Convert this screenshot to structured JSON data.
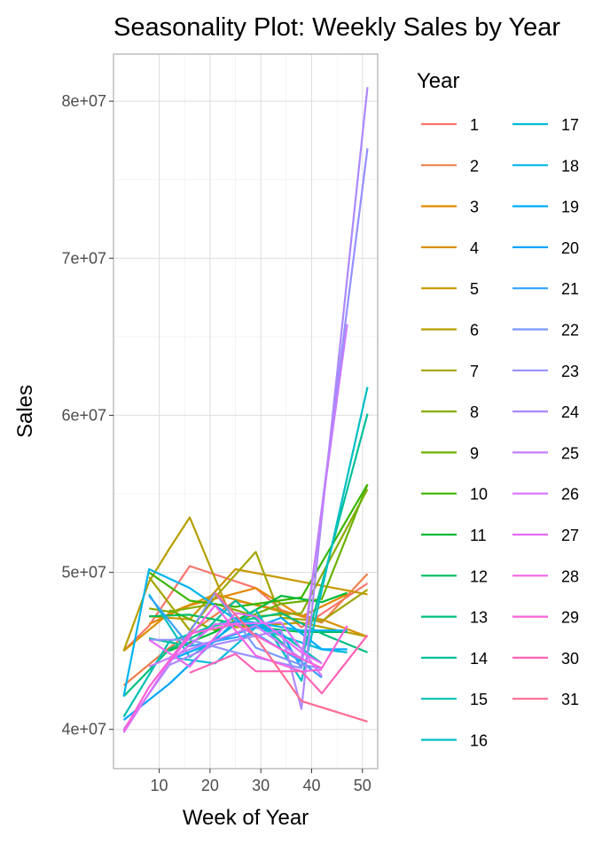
{
  "chart_data": {
    "type": "line",
    "title": "Seasonality Plot: Weekly Sales by Year",
    "xlabel": "Week of Year",
    "ylabel": "Sales",
    "xlim": [
      1,
      53
    ],
    "ylim": [
      37500000,
      83000000
    ],
    "x_ticks": [
      10,
      20,
      30,
      40,
      50
    ],
    "x_tick_labels": [
      "10",
      "20",
      "30",
      "40",
      "50"
    ],
    "y_ticks": [
      40000000,
      50000000,
      60000000,
      70000000,
      80000000
    ],
    "y_tick_labels": [
      "4e+07",
      "5e+07",
      "6e+07",
      "7e+07",
      "8e+07"
    ],
    "grid": true,
    "legend_title": "Year",
    "legend_placement": "right",
    "series": [
      {
        "name": "1",
        "color": "#F8766D",
        "x": [
          3,
          8,
          16,
          29,
          38,
          51
        ],
        "y": [
          45000000,
          46600000,
          50400000,
          49000000,
          46500000,
          49300000
        ]
      },
      {
        "name": "2",
        "color": "#F07E4B",
        "x": [
          3,
          12,
          25,
          34,
          42,
          51
        ],
        "y": [
          42800000,
          45200000,
          48200000,
          47600000,
          46800000,
          49900000
        ]
      },
      {
        "name": "3",
        "color": "#E58700",
        "x": [
          8,
          16,
          29,
          38,
          47
        ],
        "y": [
          46700000,
          47900000,
          49000000,
          47200000,
          48600000
        ]
      },
      {
        "name": "4",
        "color": "#D89000",
        "x": [
          3,
          12,
          21,
          34,
          42,
          51
        ],
        "y": [
          45000000,
          47400000,
          48600000,
          47500000,
          47000000,
          45900000
        ]
      },
      {
        "name": "5",
        "color": "#C99800",
        "x": [
          8,
          16,
          25,
          38,
          51
        ],
        "y": [
          47200000,
          47000000,
          50200000,
          49400000,
          48600000
        ]
      },
      {
        "name": "6",
        "color": "#B79F00",
        "x": [
          3,
          8,
          12,
          16,
          25,
          38,
          51
        ],
        "y": [
          45000000,
          49400000,
          51500000,
          53500000,
          46500000,
          46800000,
          45900000
        ]
      },
      {
        "name": "7",
        "color": "#A3A500",
        "x": [
          8,
          16,
          21,
          29,
          34,
          42,
          51
        ],
        "y": [
          49700000,
          46300000,
          48400000,
          51300000,
          47100000,
          46900000,
          48900000
        ]
      },
      {
        "name": "8",
        "color": "#8BAB00",
        "x": [
          8,
          12,
          21,
          29,
          38,
          51
        ],
        "y": [
          47700000,
          47500000,
          48000000,
          47200000,
          47400000,
          55300000
        ]
      },
      {
        "name": "9",
        "color": "#6BB100",
        "x": [
          12,
          21,
          34,
          42,
          51
        ],
        "y": [
          47600000,
          46300000,
          48000000,
          48300000,
          55600000
        ]
      },
      {
        "name": "10",
        "color": "#39B600",
        "x": [
          8,
          16,
          25,
          38,
          51
        ],
        "y": [
          50000000,
          48200000,
          47800000,
          48400000,
          55600000
        ]
      },
      {
        "name": "11",
        "color": "#00BA38",
        "x": [
          12,
          21,
          34,
          42,
          47
        ],
        "y": [
          45000000,
          46200000,
          48500000,
          48100000,
          48700000
        ]
      },
      {
        "name": "12",
        "color": "#00BD5C",
        "x": [
          8,
          16,
          29,
          38,
          47
        ],
        "y": [
          47200000,
          47300000,
          46500000,
          46200000,
          46200000
        ]
      },
      {
        "name": "13",
        "color": "#00BF7D",
        "x": [
          3,
          12,
          21,
          34,
          42,
          51
        ],
        "y": [
          42100000,
          45100000,
          46600000,
          47400000,
          46100000,
          44900000
        ]
      },
      {
        "name": "14",
        "color": "#00C19A",
        "x": [
          8,
          16,
          25,
          38,
          51
        ],
        "y": [
          45800000,
          45300000,
          48200000,
          44400000,
          60100000
        ]
      },
      {
        "name": "15",
        "color": "#00C0B5",
        "x": [
          3,
          12,
          25,
          34,
          42
        ],
        "y": [
          40800000,
          45600000,
          47100000,
          46100000,
          44200000
        ]
      },
      {
        "name": "16",
        "color": "#00BFC4",
        "x": [
          8,
          16,
          29,
          38,
          51
        ],
        "y": [
          48600000,
          44600000,
          47600000,
          43100000,
          61800000
        ]
      },
      {
        "name": "17",
        "color": "#00BBDA",
        "x": [
          12,
          21,
          29,
          42,
          47
        ],
        "y": [
          44600000,
          44200000,
          46500000,
          45100000,
          44900000
        ]
      },
      {
        "name": "18",
        "color": "#00B5EE",
        "x": [
          3,
          8,
          16,
          25,
          38,
          47
        ],
        "y": [
          42100000,
          50200000,
          49000000,
          47000000,
          46300000,
          46300000
        ]
      },
      {
        "name": "19",
        "color": "#00ABFD",
        "x": [
          12,
          21,
          34,
          42,
          47
        ],
        "y": [
          44400000,
          45600000,
          47100000,
          45100000,
          45100000
        ]
      },
      {
        "name": "20",
        "color": "#00A5FF",
        "x": [
          3,
          12,
          25,
          34,
          38
        ],
        "y": [
          40600000,
          42900000,
          46900000,
          46200000,
          43900000
        ]
      },
      {
        "name": "21",
        "color": "#35A2FF",
        "x": [
          8,
          16,
          29,
          38,
          42
        ],
        "y": [
          48500000,
          45300000,
          46100000,
          44300000,
          43300000
        ]
      },
      {
        "name": "22",
        "color": "#7997FF",
        "x": [
          12,
          21,
          29,
          38,
          42
        ],
        "y": [
          44200000,
          48700000,
          45200000,
          44100000,
          43900000
        ]
      },
      {
        "name": "23",
        "color": "#9590FF",
        "x": [
          8,
          16,
          25,
          38,
          51
        ],
        "y": [
          45700000,
          45700000,
          44900000,
          43900000,
          77000000
        ]
      },
      {
        "name": "24",
        "color": "#AC88FF",
        "x": [
          3,
          12,
          21,
          34,
          38,
          51
        ],
        "y": [
          40000000,
          44100000,
          45400000,
          46300000,
          41300000,
          80900000
        ]
      },
      {
        "name": "25",
        "color": "#C77CFF",
        "x": [
          8,
          16,
          29,
          38,
          47
        ],
        "y": [
          44000000,
          45100000,
          46600000,
          44500000,
          65800000
        ]
      },
      {
        "name": "26",
        "color": "#D874FD",
        "x": [
          3,
          12,
          21,
          34,
          42
        ],
        "y": [
          39800000,
          44300000,
          46700000,
          46800000,
          43400000
        ]
      },
      {
        "name": "27",
        "color": "#E76BF3",
        "x": [
          8,
          16,
          25,
          29,
          38,
          42
        ],
        "y": [
          45700000,
          44000000,
          47400000,
          47200000,
          44900000,
          44200000
        ]
      },
      {
        "name": "28",
        "color": "#F365E6",
        "x": [
          12,
          21,
          29,
          38,
          42
        ],
        "y": [
          44300000,
          47900000,
          44700000,
          43700000,
          43800000
        ]
      },
      {
        "name": "29",
        "color": "#FC61D5",
        "x": [
          3,
          8,
          16,
          25,
          34,
          42,
          47
        ],
        "y": [
          39900000,
          42700000,
          46100000,
          46700000,
          45100000,
          43900000,
          46600000
        ]
      },
      {
        "name": "30",
        "color": "#FF63B6",
        "x": [
          16,
          25,
          29,
          38,
          42,
          51
        ],
        "y": [
          43600000,
          44800000,
          43700000,
          43700000,
          42300000,
          46000000
        ]
      },
      {
        "name": "31",
        "color": "#FF6C90",
        "x": [
          21,
          29,
          38,
          51
        ],
        "y": [
          48700000,
          45900000,
          41800000,
          40500000
        ]
      }
    ]
  }
}
